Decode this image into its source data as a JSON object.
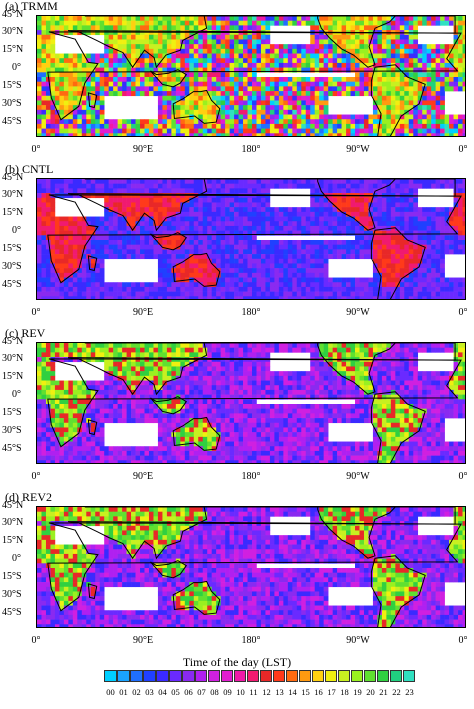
{
  "chart_data": [
    {
      "type": "heatmap",
      "title": "(a) TRMM",
      "y_tick_labels": [
        "45°N",
        "30°N",
        "15°N",
        "0°",
        "15°S",
        "30°S",
        "45°S"
      ],
      "x_tick_labels": [
        "0°",
        "90°E",
        "180°",
        "90°W",
        "0°"
      ],
      "value_legend": "Time of the day (LST)",
      "pattern": "noisy"
    },
    {
      "type": "heatmap",
      "title": "(b) CNTL",
      "y_tick_labels": [
        "45°N",
        "30°N",
        "15°N",
        "0°",
        "15°S",
        "30°S",
        "45°S"
      ],
      "x_tick_labels": [
        "0°",
        "90°E",
        "180°",
        "90°W",
        "0°"
      ],
      "value_legend": "Time of the day (LST)",
      "pattern": "smooth-early"
    },
    {
      "type": "heatmap",
      "title": "(c) REV",
      "y_tick_labels": [
        "45°N",
        "30°N",
        "15°N",
        "0°",
        "15°S",
        "30°S",
        "45°S"
      ],
      "x_tick_labels": [
        "0°",
        "90°E",
        "180°",
        "90°W",
        "0°"
      ],
      "value_legend": "Time of the day (LST)",
      "pattern": "smooth-revised"
    },
    {
      "type": "heatmap",
      "title": "(d) REV2",
      "y_tick_labels": [
        "45°N",
        "30°N",
        "15°N",
        "0°",
        "15°S",
        "30°S",
        "45°S"
      ],
      "x_tick_labels": [
        "0°",
        "90°E",
        "180°",
        "90°W",
        "0°"
      ],
      "value_legend": "Time of the day (LST)",
      "pattern": "smooth-revised"
    }
  ],
  "colorbar": {
    "title": "Time of the day (LST)",
    "labels": [
      "00",
      "01",
      "02",
      "03",
      "04",
      "05",
      "06",
      "07",
      "08",
      "09",
      "10",
      "11",
      "12",
      "13",
      "14",
      "15",
      "16",
      "17",
      "18",
      "19",
      "20",
      "21",
      "22",
      "23"
    ],
    "colors": [
      "#00cfff",
      "#1aa3ff",
      "#1f6fff",
      "#2040ff",
      "#3a2aff",
      "#6a2aff",
      "#8a2af0",
      "#b020f0",
      "#d020e0",
      "#e21ed0",
      "#ef1aa8",
      "#f01a70",
      "#e82828",
      "#ff3a1a",
      "#ff6a10",
      "#ff9a10",
      "#ffd010",
      "#f0f010",
      "#c8f020",
      "#9af020",
      "#60e030",
      "#30d040",
      "#20d080",
      "#30e0c0"
    ]
  }
}
